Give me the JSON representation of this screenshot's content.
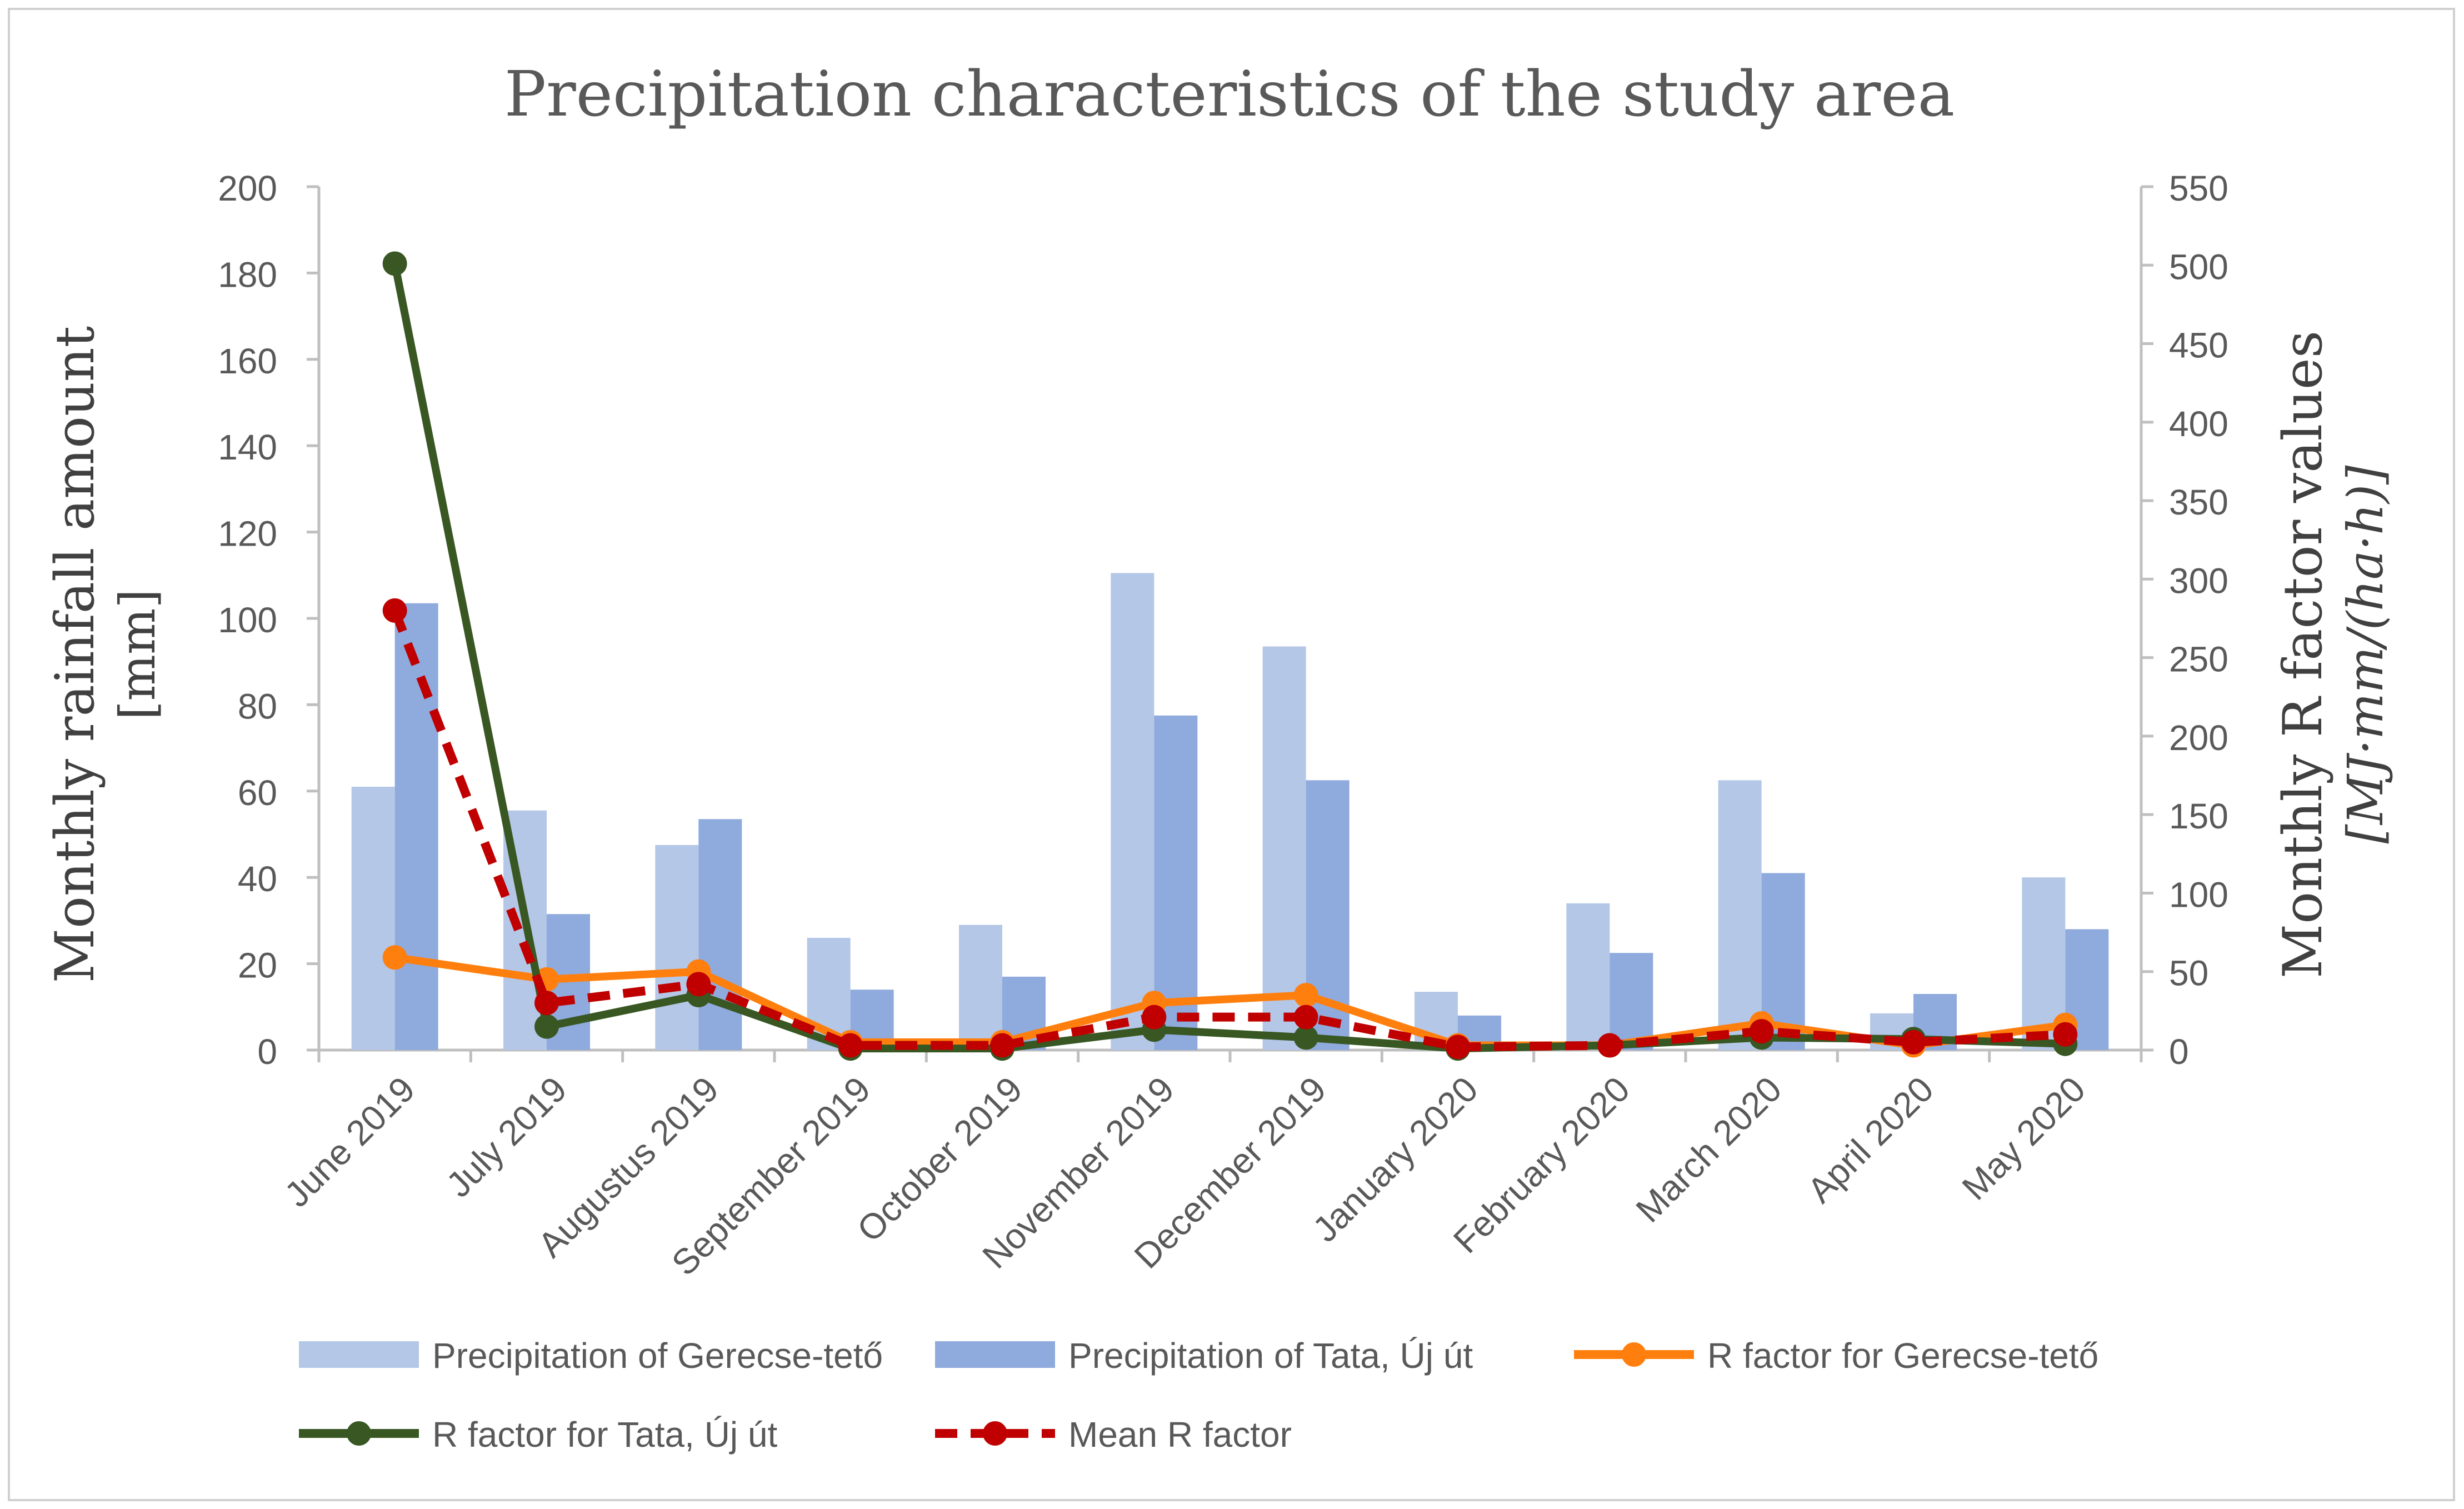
{
  "chart_data": {
    "type": "bar",
    "title": "Precipitation characteristics of the study area",
    "ylabel": "Monthly rainfall amount",
    "ylabel_unit": "[mm]",
    "y2label": "Monthly R factor values",
    "y2label_unit": "[MJ·mm/(ha·h)]",
    "ylim": [
      0,
      200
    ],
    "y2lim": [
      0,
      550
    ],
    "yticks": [
      0,
      20,
      40,
      60,
      80,
      100,
      120,
      140,
      160,
      180,
      200
    ],
    "y2ticks": [
      0,
      50,
      100,
      150,
      200,
      250,
      300,
      350,
      400,
      450,
      500,
      550
    ],
    "grid": false,
    "legend_position": "bottom",
    "categories": [
      "June 2019",
      "July 2019",
      "Augustus 2019",
      "September 2019",
      "October 2019",
      "November 2019",
      "December 2019",
      "January 2020",
      "February 2020",
      "March 2020",
      "April 2020",
      "May 2020"
    ],
    "series": [
      {
        "name": "Precipitation of Gerecse-tető",
        "kind": "bar",
        "axis": "left",
        "color": "#b4c7e7",
        "values": [
          61,
          55.5,
          47.5,
          26,
          29,
          110.5,
          93.5,
          13.5,
          34,
          62.5,
          8.5,
          40
        ]
      },
      {
        "name": "Precipitation of Tata, Új út",
        "kind": "bar",
        "axis": "left",
        "color": "#8faadc",
        "values": [
          103.5,
          31.5,
          53.5,
          14,
          17,
          77.5,
          62.5,
          8,
          22.5,
          41,
          13,
          28
        ]
      },
      {
        "name": "R factor for Gerecse-tető",
        "kind": "line",
        "axis": "right",
        "color": "#ff7f0e",
        "dash": false,
        "values": [
          59,
          45,
          50,
          5,
          5,
          30,
          35,
          3,
          3,
          17,
          3,
          16
        ]
      },
      {
        "name": "R factor for Tata, Új út",
        "kind": "line",
        "axis": "right",
        "color": "#385723",
        "dash": false,
        "values": [
          501,
          15,
          35,
          1,
          1,
          13,
          8,
          1,
          3,
          8,
          7,
          4
        ]
      },
      {
        "name": "Mean R factor",
        "kind": "line",
        "axis": "right",
        "color": "#c00000",
        "dash": true,
        "values": [
          280,
          30,
          42,
          3,
          3,
          21,
          21,
          2,
          3,
          12,
          5,
          10
        ]
      }
    ]
  }
}
